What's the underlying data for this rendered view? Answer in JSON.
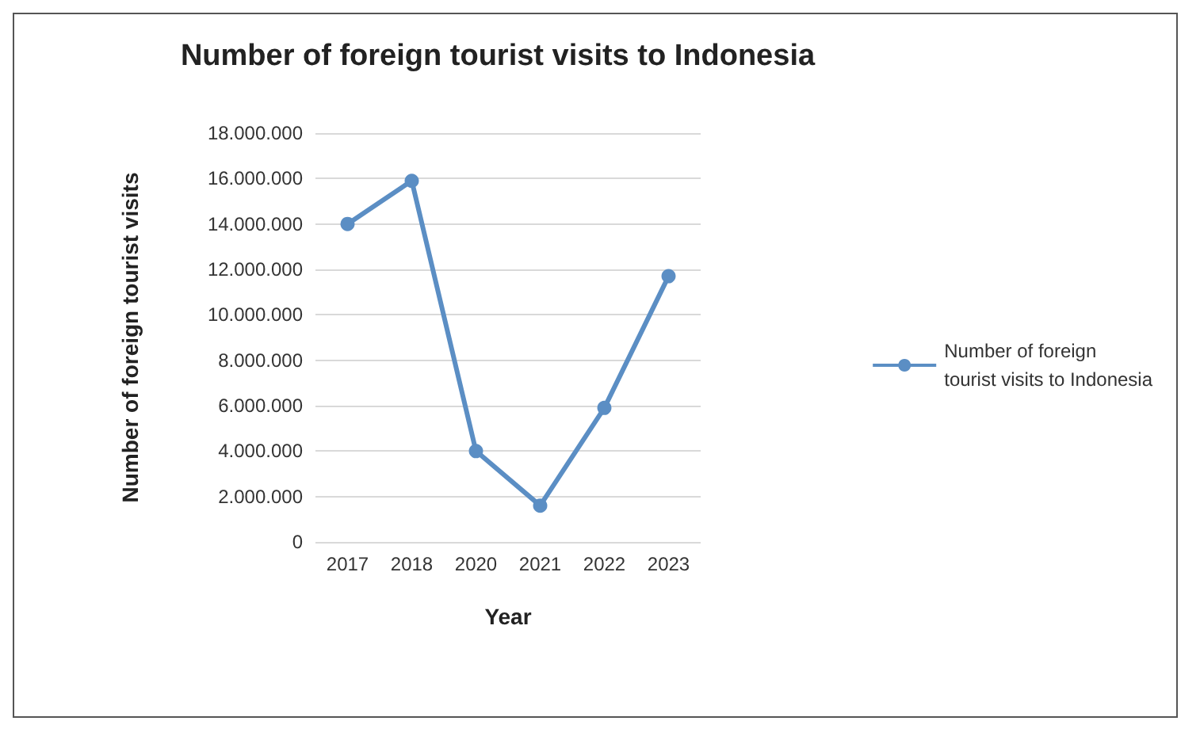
{
  "chart_data": {
    "type": "line",
    "title": "Number of foreign tourist visits to Indonesia",
    "xlabel": "Year",
    "ylabel": "Number of foreign tourist visits",
    "categories": [
      "2017",
      "2018",
      "2020",
      "2021",
      "2022",
      "2023"
    ],
    "series": [
      {
        "name": "Number of foreign\ntourist visits to Indonesia",
        "color": "#5b8ec4",
        "values": [
          14000000,
          15900000,
          4000000,
          1600000,
          5900000,
          11700000
        ]
      }
    ],
    "ylim": [
      0,
      18000000
    ],
    "yticks": [
      0,
      {
        "value": 2000000,
        "label": "2.000.000"
      },
      {
        "value": 4000000,
        "label": "4.000.000"
      },
      {
        "value": 6000000,
        "label": "6.000.000"
      },
      {
        "value": 8000000,
        "label": "8.000.000"
      },
      {
        "value": 10000000,
        "label": "10.000.000"
      },
      {
        "value": 12000000,
        "label": "12.000.000"
      },
      {
        "value": 14000000,
        "label": "14.000.000"
      },
      {
        "value": 16000000,
        "label": "16.000.000"
      },
      {
        "value": 18000000,
        "label": "18.000.000"
      }
    ],
    "grid": "y",
    "legend": "right",
    "marker": "circle",
    "line_style": "solid"
  }
}
